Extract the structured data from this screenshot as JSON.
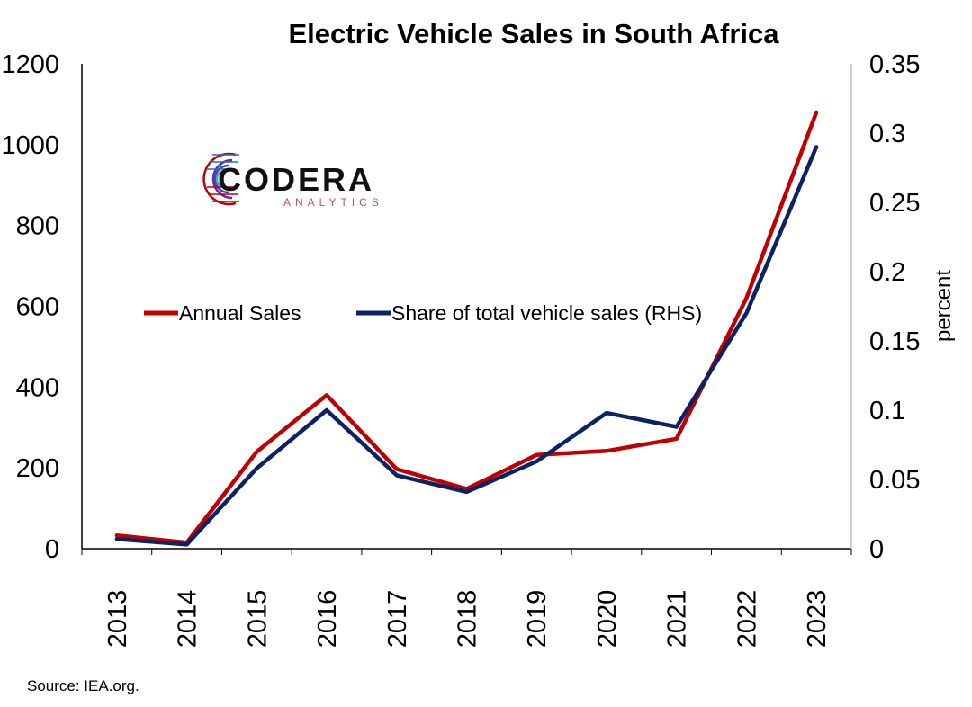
{
  "colors": {
    "annual_sales": "#C00000",
    "share": "#0B2265",
    "axis": "#000000",
    "right_axis": "#BFBFBF"
  },
  "logo": {
    "name": "CODERA",
    "sub": "ANALYTICS"
  },
  "source": "Source: IEA.org.",
  "chart_data": {
    "type": "line",
    "title": "Electric Vehicle Sales in South Africa",
    "xlabel": "",
    "ylabel": "",
    "y2label": "percent",
    "categories": [
      "2013",
      "2014",
      "2015",
      "2016",
      "2017",
      "2018",
      "2019",
      "2020",
      "2021",
      "2022",
      "2023"
    ],
    "ylim": [
      0,
      1200
    ],
    "yticks": [
      "0",
      "200",
      "400",
      "600",
      "800",
      "1000",
      "1200"
    ],
    "y2lim": [
      0,
      0.35
    ],
    "y2ticks": [
      "0",
      "0.05",
      "0.1",
      "0.15",
      "0.2",
      "0.25",
      "0.3",
      "0.35"
    ],
    "legend_position": "middle-left",
    "grid": false,
    "series": [
      {
        "name": "Annual Sales",
        "axis": "left",
        "values": [
          33,
          15,
          240,
          380,
          197,
          148,
          232,
          242,
          272,
          620,
          1080
        ]
      },
      {
        "name": "Share of total vehicle sales (RHS)",
        "axis": "right",
        "values": [
          0.007,
          0.003,
          0.058,
          0.1,
          0.053,
          0.041,
          0.063,
          0.098,
          0.088,
          0.17,
          0.29
        ]
      }
    ]
  }
}
